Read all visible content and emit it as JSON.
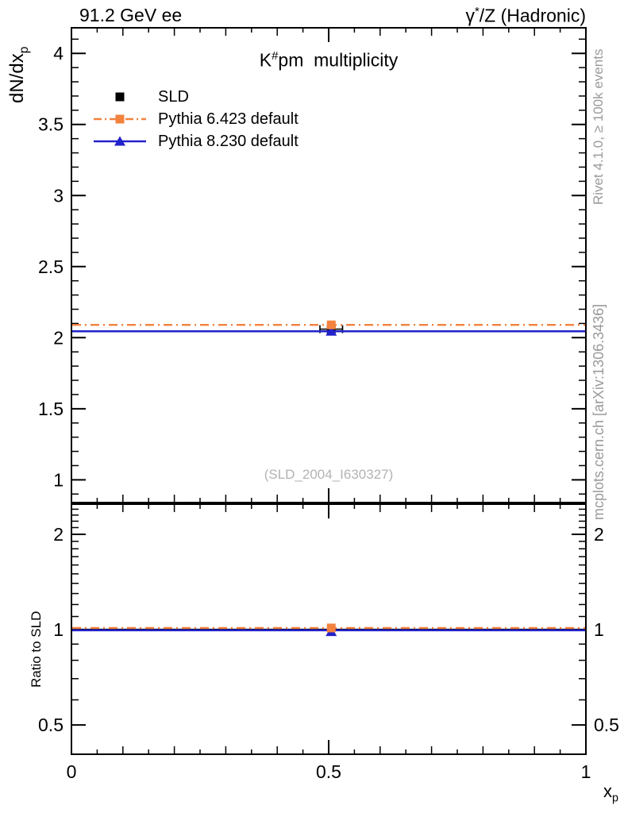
{
  "header": {
    "left": "91.2 GeV ee",
    "right_base": "γ",
    "right_sup": "*",
    "right_rest": "/Z (Hadronic)"
  },
  "main_panel": {
    "title_base": "K",
    "title_sup": "#",
    "title_rest": "pm  multiplicity",
    "ylabel_base": "dN/dx",
    "ylabel_sub": "p",
    "watermark": "(SLD_2004_I630327)"
  },
  "ratio_panel": {
    "ylabel": "Ratio to SLD"
  },
  "xaxis": {
    "label_base": "x",
    "label_sub": "p"
  },
  "side_notes": {
    "top": "Rivet 4.1.0, ≥ 100k events",
    "bottom": "mcplots.cern.ch [arXiv:1306.3436]"
  },
  "legend": {
    "items": [
      {
        "label": "SLD",
        "color": "#000000",
        "line": "none",
        "marker": "square"
      },
      {
        "label": "Pythia 6.423 default",
        "color": "#f2823e",
        "line": "dashdot",
        "marker": "square"
      },
      {
        "label": "Pythia 8.230 default",
        "color": "#2222cc",
        "line": "solid",
        "marker": "triangle"
      }
    ]
  },
  "colors": {
    "frame": "#000000",
    "gray_note": "#9a9a9a",
    "watermark": "#b3b3b3"
  },
  "chart_data": [
    {
      "type": "line",
      "panel": "main",
      "title": "K^#pm multiplicity",
      "xlabel": "x_p",
      "ylabel": "dN/dx_p",
      "yscale": "linear",
      "xlim": [
        0,
        1
      ],
      "ylim": [
        0.84,
        4.18
      ],
      "yticks": [
        1,
        1.5,
        2,
        2.5,
        3,
        3.5,
        4
      ],
      "ytick_labels": [
        "1",
        "1.5",
        "2",
        "2.5",
        "3",
        "3.5",
        "4"
      ],
      "yminor_step": 0.1,
      "xticks": [
        0,
        0.5,
        1
      ],
      "xtick_labels": [
        "0",
        "0.5",
        "1"
      ],
      "xmedium_step": 0.1,
      "xminor_step": 0.05,
      "x_labels_visible": false,
      "grid": false,
      "legend_position": "upper-left-inside",
      "series": [
        {
          "name": "SLD",
          "type": "points",
          "color": "#000000",
          "marker": "square",
          "zorder": 1,
          "points": [
            {
              "x": 0.505,
              "y": 2.06,
              "xerr": 0.022
            }
          ]
        },
        {
          "name": "Pythia 8.230 default",
          "type": "hline",
          "color": "#2222cc",
          "dash": "solid",
          "y": 2.045,
          "marker": "triangle",
          "marker_x": 0.505,
          "zorder": 2
        },
        {
          "name": "Pythia 6.423 default",
          "type": "hline",
          "color": "#f2823e",
          "dash": "dashdot",
          "y": 2.09,
          "marker": "square",
          "marker_x": 0.505,
          "zorder": 3
        }
      ]
    },
    {
      "type": "line",
      "panel": "ratio",
      "title": "",
      "xlabel": "x_p",
      "ylabel": "Ratio to SLD",
      "yscale": "log",
      "xlim": [
        0,
        1
      ],
      "ylim": [
        0.404,
        2.49
      ],
      "yticks": [
        0.5,
        1,
        2
      ],
      "ytick_labels": [
        "0.5",
        "1",
        "2"
      ],
      "yminor_step": 0.1,
      "xticks": [
        0,
        0.5,
        1
      ],
      "xtick_labels": [
        "0",
        "0.5",
        "1"
      ],
      "xmedium_step": 0.1,
      "xminor_step": 0.05,
      "x_labels_visible": true,
      "y_labels_both_sides": true,
      "grid": false,
      "series": [
        {
          "name": "SLD",
          "type": "hline",
          "color": "#000000",
          "dash": "solid",
          "y": 1.0,
          "zorder": 1
        },
        {
          "name": "Pythia 8.230 default",
          "type": "hline",
          "color": "#2222cc",
          "dash": "solid",
          "y": 0.995,
          "marker": "triangle",
          "marker_x": 0.505,
          "marker_y": 0.985,
          "zorder": 2
        },
        {
          "name": "Pythia 6.423 default",
          "type": "hline",
          "color": "#f2823e",
          "dash": "dashdot",
          "y": 1.012,
          "marker": "square",
          "marker_x": 0.505,
          "marker_y": 1.012,
          "zorder": 3
        }
      ]
    }
  ]
}
